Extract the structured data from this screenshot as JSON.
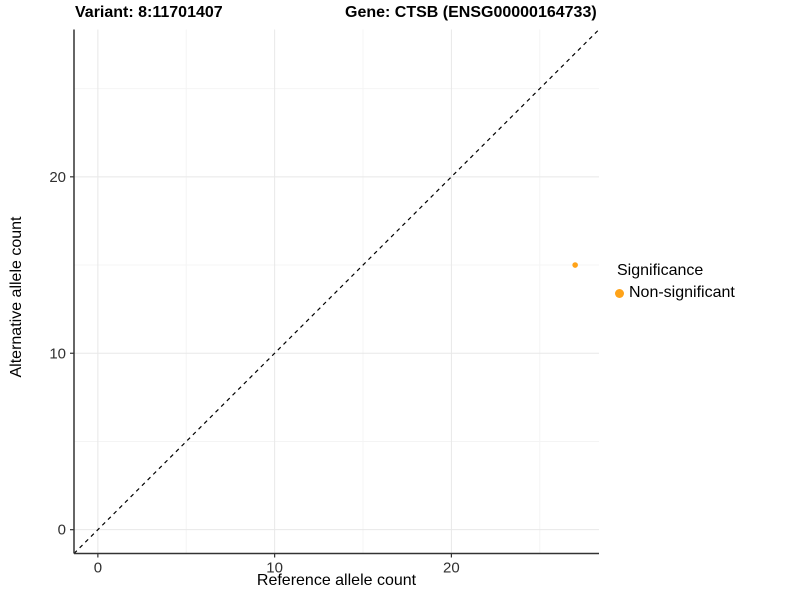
{
  "titles": {
    "variant": "Variant: 8:11701407",
    "gene": "Gene: CTSB (ENSG00000164733)"
  },
  "chart_data": {
    "type": "scatter",
    "title_left": "Variant: 8:11701407",
    "title_right": "Gene: CTSB (ENSG00000164733)",
    "xlabel": "Reference allele count",
    "ylabel": "Alternative allele count",
    "xlim": [
      -1.35,
      28.35
    ],
    "ylim": [
      -1.35,
      28.35
    ],
    "x_major_ticks": [
      0,
      10,
      20
    ],
    "y_major_ticks": [
      0,
      10,
      20
    ],
    "x_minor_ticks": [
      5,
      15,
      25
    ],
    "y_minor_ticks": [
      5,
      15,
      25
    ],
    "grid": true,
    "points": [
      {
        "x": 27,
        "y": 15,
        "series": "Non-significant"
      }
    ],
    "reference_line": {
      "kind": "identity",
      "style": "dashed"
    },
    "legend": {
      "title": "Significance",
      "position": "right",
      "entries": [
        {
          "label": "Non-significant",
          "color": "#FFA319"
        }
      ]
    }
  },
  "colors": {
    "point": "#FFA319",
    "axis_line": "#333333",
    "tick_label": "#303030",
    "grid_major": "#E8E8E8",
    "grid_minor": "#F4F4F4",
    "dashed_line": "#000000"
  }
}
